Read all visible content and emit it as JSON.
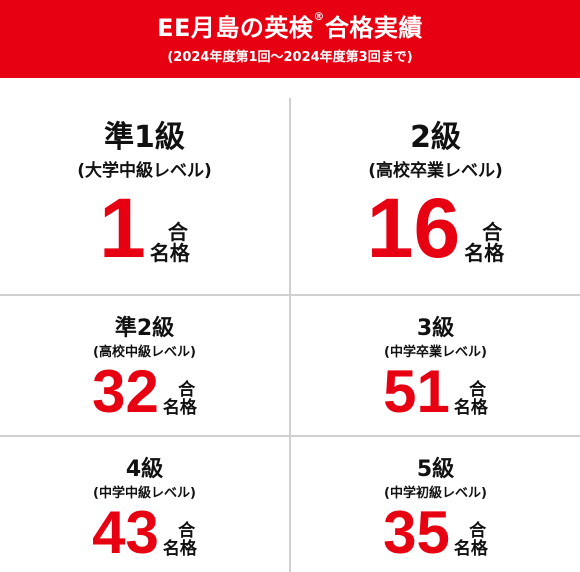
{
  "banner": {
    "title": "EE月島の英検",
    "title_mark": "®",
    "title_suffix": "合格実績",
    "subtitle": "(2024年度第1回〜2024年度第3回まで)"
  },
  "unit": {
    "char1": "合",
    "char2": "名格"
  },
  "results": [
    {
      "grade": "準1級",
      "level": "(大学中級レベル)",
      "count": "1"
    },
    {
      "grade": "2級",
      "level": "(高校卒業レベル)",
      "count": "16"
    },
    {
      "grade": "準2級",
      "level": "(高校中級レベル)",
      "count": "32"
    },
    {
      "grade": "3級",
      "level": "(中学卒業レベル)",
      "count": "51"
    },
    {
      "grade": "4級",
      "level": "(中学中級レベル)",
      "count": "43"
    },
    {
      "grade": "5級",
      "level": "(中学初級レベル)",
      "count": "35"
    }
  ],
  "colors": {
    "accent": "#e60012",
    "text": "#111111",
    "divider": "#d0d0d0"
  }
}
